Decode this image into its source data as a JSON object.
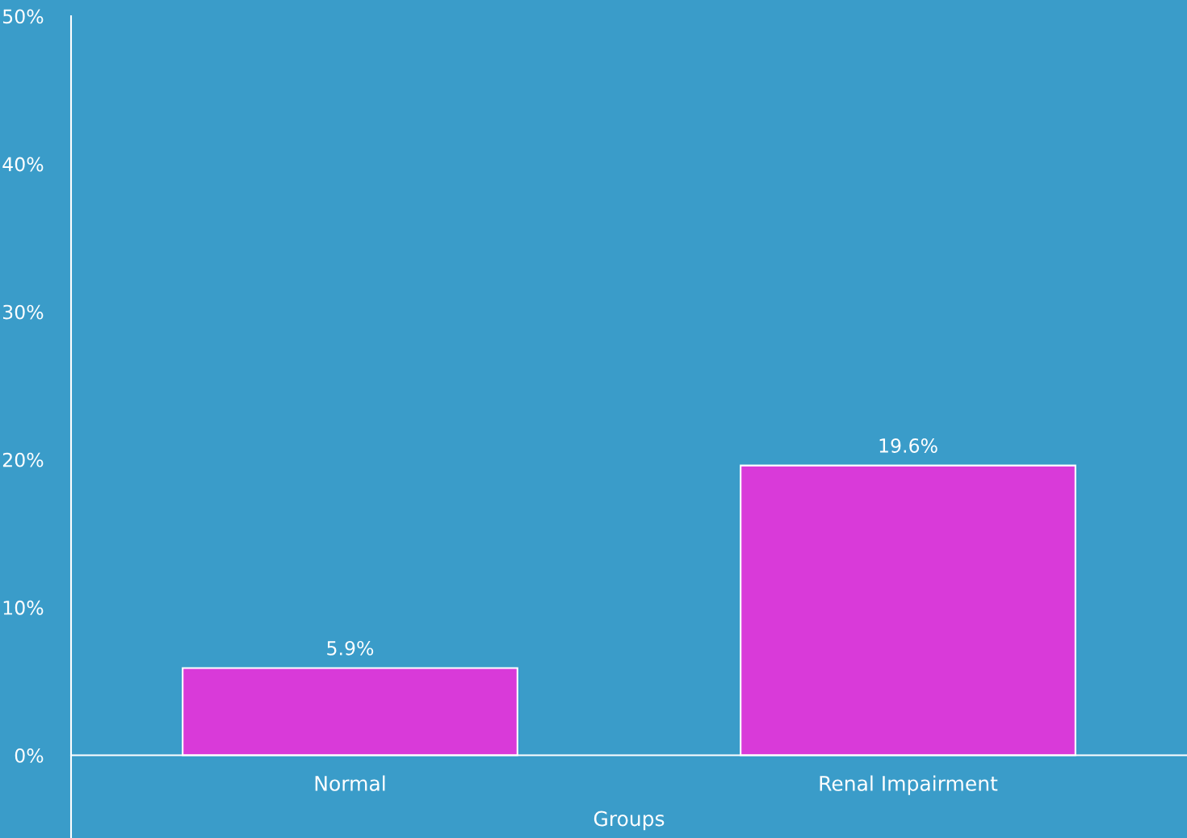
{
  "chart_data": {
    "type": "bar",
    "xlabel": "Groups",
    "categories": [
      "Normal",
      "Renal Impairment"
    ],
    "values": [
      5.9,
      19.6
    ],
    "color": "#d93ad9",
    "value_labels": [
      "5.9%",
      "19.6%"
    ],
    "ylim": [
      -5.6,
      50
    ],
    "yticks": [
      {
        "value": 0,
        "label": "0%"
      },
      {
        "value": 10,
        "label": "10%"
      },
      {
        "value": 20,
        "label": "20%"
      },
      {
        "value": 30,
        "label": "30%"
      },
      {
        "value": 40,
        "label": "40%"
      },
      {
        "value": 50,
        "label": "50%"
      }
    ],
    "grid": false
  }
}
